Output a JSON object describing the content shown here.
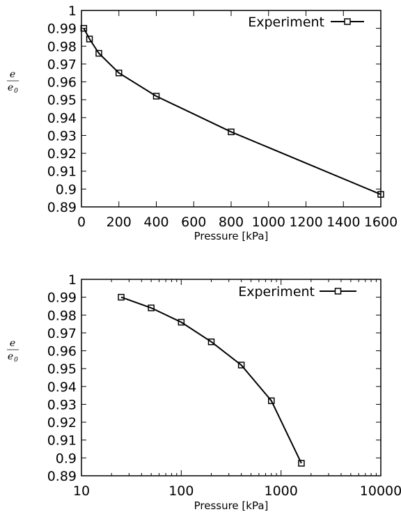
{
  "chart_data": [
    {
      "type": "line",
      "x_scale": "linear",
      "xlim": [
        0,
        1600
      ],
      "ylim": [
        0.89,
        1.0
      ],
      "xlabel": "Pressure [kPa]",
      "ylabel": "e / e0",
      "ylabel_num": "e",
      "ylabel_den": "e",
      "ylabel_den_sub": "0",
      "x_ticks": [
        "0",
        "200",
        "400",
        "600",
        "800",
        "1000",
        "1200",
        "1400",
        "1600"
      ],
      "y_ticks": [
        "0.89",
        "0.9",
        "0.91",
        "0.92",
        "0.93",
        "0.94",
        "0.95",
        "0.96",
        "0.97",
        "0.98",
        "0.99",
        "1"
      ],
      "legend_position": "top-right",
      "series": [
        {
          "name": "Experiment",
          "marker": "square",
          "x": [
            12.5,
            43,
            93,
            200,
            400,
            800,
            1600
          ],
          "y": [
            0.99,
            0.984,
            0.976,
            0.965,
            0.952,
            0.932,
            0.897
          ]
        }
      ]
    },
    {
      "type": "line",
      "x_scale": "log",
      "xlim": [
        10,
        10000
      ],
      "ylim": [
        0.89,
        1.0
      ],
      "xlabel": "Pressure [kPa]",
      "ylabel": "e / e0",
      "ylabel_num": "e",
      "ylabel_den": "e",
      "ylabel_den_sub": "0",
      "x_ticks": [
        "10",
        "100",
        "1000",
        "10000"
      ],
      "y_ticks": [
        "0.89",
        "0.9",
        "0.91",
        "0.92",
        "0.93",
        "0.94",
        "0.95",
        "0.96",
        "0.97",
        "0.98",
        "0.99",
        "1"
      ],
      "legend_position": "top-right",
      "series": [
        {
          "name": "Experiment",
          "marker": "square",
          "x": [
            25,
            50,
            100,
            200,
            400,
            800,
            1600
          ],
          "y": [
            0.99,
            0.984,
            0.976,
            0.965,
            0.952,
            0.932,
            0.897
          ]
        }
      ]
    }
  ]
}
